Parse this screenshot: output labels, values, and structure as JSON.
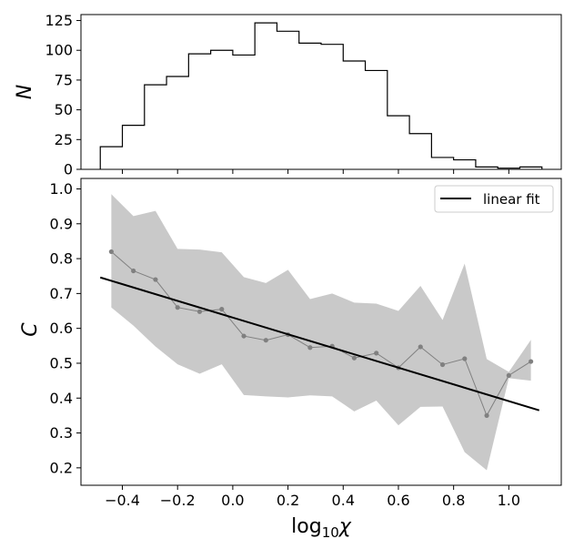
{
  "chart_data": [
    {
      "type": "histogram",
      "ylabel": "N",
      "xlabel": "",
      "ylim": [
        0,
        130
      ],
      "yticks": [
        0,
        25,
        50,
        75,
        100,
        125
      ],
      "xlim": [
        -0.55,
        1.19
      ],
      "bin_edges": [
        -0.48,
        -0.4,
        -0.32,
        -0.24,
        -0.16,
        -0.08,
        0.0,
        0.08,
        0.16,
        0.24,
        0.32,
        0.4,
        0.48,
        0.56,
        0.64,
        0.72,
        0.8,
        0.88,
        0.96,
        1.04,
        1.12
      ],
      "counts": [
        19,
        37,
        71,
        78,
        97,
        100,
        96,
        123,
        116,
        106,
        105,
        91,
        83,
        45,
        30,
        10,
        8,
        2,
        1,
        2
      ]
    },
    {
      "type": "line",
      "xlabel": "log",
      "xlabel_sub": "10",
      "xlabel_sym": "χ",
      "ylabel": "C",
      "xlim": [
        -0.55,
        1.19
      ],
      "ylim": [
        0.15,
        1.03
      ],
      "xticks": [
        -0.4,
        -0.2,
        0.0,
        0.2,
        0.4,
        0.6,
        0.8,
        1.0
      ],
      "xtick_labels": [
        "−0.4",
        "−0.2",
        "0.0",
        "0.2",
        "0.4",
        "0.6",
        "0.8",
        "1.0"
      ],
      "yticks": [
        0.2,
        0.3,
        0.4,
        0.5,
        0.6,
        0.7,
        0.8,
        0.9,
        1.0
      ],
      "ytick_labels": [
        "0.2",
        "0.3",
        "0.4",
        "0.5",
        "0.6",
        "0.7",
        "0.8",
        "0.9",
        "1.0"
      ],
      "series": [
        {
          "name": "data",
          "x": [
            -0.44,
            -0.36,
            -0.28,
            -0.2,
            -0.12,
            -0.04,
            0.04,
            0.12,
            0.2,
            0.28,
            0.36,
            0.44,
            0.52,
            0.6,
            0.68,
            0.76,
            0.84,
            0.92,
            1.0,
            1.08
          ],
          "y": [
            0.82,
            0.765,
            0.74,
            0.66,
            0.648,
            0.655,
            0.578,
            0.566,
            0.582,
            0.545,
            0.549,
            0.515,
            0.529,
            0.487,
            0.547,
            0.496,
            0.513,
            0.35,
            0.465,
            0.505
          ],
          "color": "#808080"
        }
      ],
      "band": {
        "x": [
          -0.44,
          -0.36,
          -0.28,
          -0.2,
          -0.12,
          -0.04,
          0.04,
          0.12,
          0.2,
          0.28,
          0.36,
          0.44,
          0.52,
          0.6,
          0.68,
          0.76,
          0.84,
          0.92,
          1.0,
          1.08
        ],
        "upper": [
          0.985,
          0.922,
          0.937,
          0.828,
          0.826,
          0.818,
          0.747,
          0.73,
          0.768,
          0.684,
          0.7,
          0.674,
          0.671,
          0.65,
          0.722,
          0.624,
          0.786,
          0.512,
          0.475,
          0.567
        ],
        "lower": [
          0.66,
          0.608,
          0.548,
          0.497,
          0.47,
          0.497,
          0.409,
          0.405,
          0.402,
          0.408,
          0.405,
          0.362,
          0.393,
          0.322,
          0.375,
          0.376,
          0.245,
          0.193,
          0.457,
          0.45
        ],
        "color": "#c9c9c9"
      },
      "fit": {
        "name": "linear fit",
        "x": [
          -0.48,
          1.11
        ],
        "y": [
          0.746,
          0.365
        ],
        "color": "#000000"
      },
      "legend": {
        "entries": [
          "linear fit"
        ],
        "placement": "top-right"
      }
    }
  ]
}
